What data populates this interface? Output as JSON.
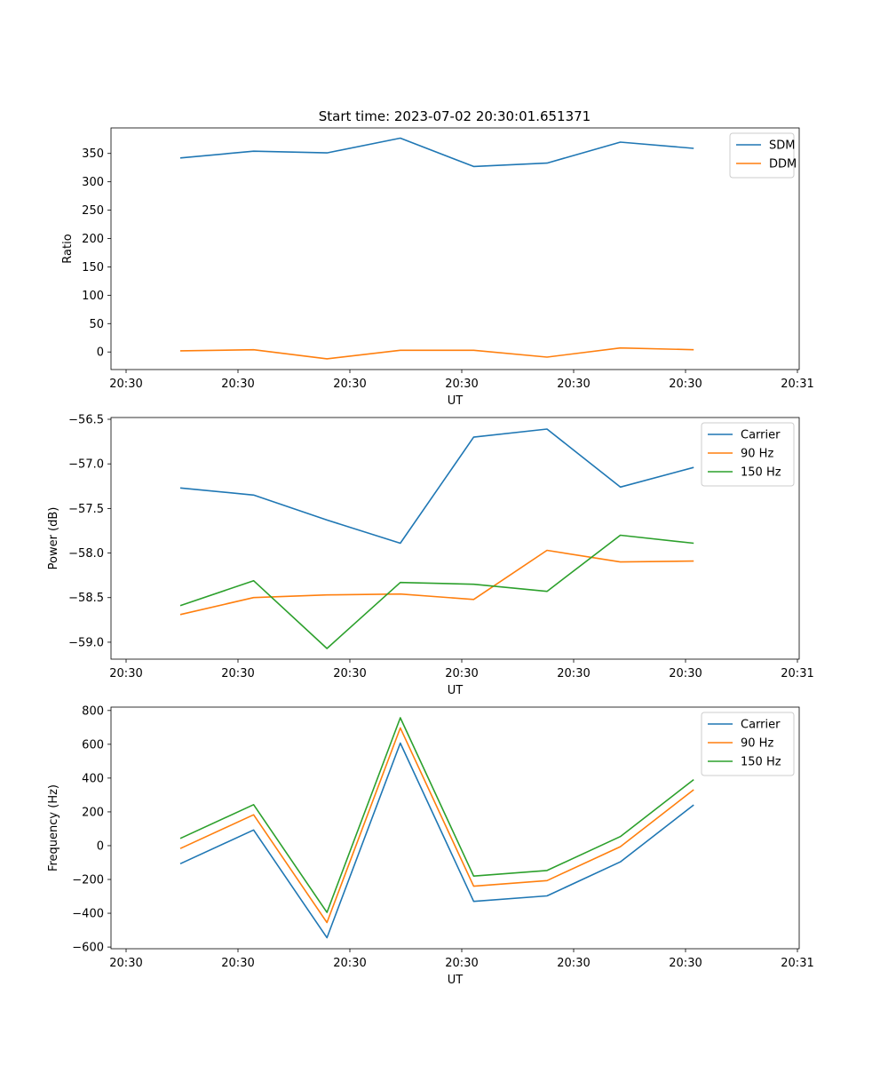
{
  "figure": {
    "title": "Start time: 2023-07-02 20:30:01.651371"
  },
  "chart_data": [
    {
      "type": "line",
      "title": "Start time: 2023-07-02 20:30:01.651371",
      "xlabel": "UT",
      "ylabel": "Ratio",
      "x_tick_labels": [
        "20:30",
        "20:30",
        "20:30",
        "20:30",
        "20:30",
        "20:30",
        "20:31"
      ],
      "yticks": [
        0,
        50,
        100,
        150,
        200,
        250,
        300,
        350
      ],
      "ylim": [
        -31,
        395
      ],
      "legend_position": "top-right",
      "x": [
        1,
        2,
        3,
        4,
        5,
        6,
        7,
        8
      ],
      "series": [
        {
          "name": "SDM",
          "color": "#1f77b4",
          "values": [
            342,
            354,
            351,
            377,
            327,
            333,
            370,
            359
          ]
        },
        {
          "name": "DDM",
          "color": "#ff7f0e",
          "values": [
            2,
            4,
            -12,
            3,
            3,
            -9,
            7,
            4
          ]
        }
      ]
    },
    {
      "type": "line",
      "title": "",
      "xlabel": "UT",
      "ylabel": "Power (dB)",
      "x_tick_labels": [
        "20:30",
        "20:30",
        "20:30",
        "20:30",
        "20:30",
        "20:30",
        "20:31"
      ],
      "yticks": [
        -59.0,
        -58.5,
        -58.0,
        -57.5,
        -57.0,
        -56.5
      ],
      "ytick_labels": [
        "−59.0",
        "−58.5",
        "−58.0",
        "−57.5",
        "−57.0",
        "−56.5"
      ],
      "ylim": [
        -59.19,
        -56.48
      ],
      "legend_position": "top-right",
      "x": [
        1,
        2,
        3,
        4,
        5,
        6,
        7,
        8
      ],
      "series": [
        {
          "name": "Carrier",
          "color": "#1f77b4",
          "values": [
            -57.27,
            -57.35,
            -57.63,
            -57.89,
            -56.7,
            -56.61,
            -57.26,
            -57.04
          ]
        },
        {
          "name": "90 Hz",
          "color": "#ff7f0e",
          "values": [
            -58.69,
            -58.5,
            -58.47,
            -58.46,
            -58.52,
            -57.97,
            -58.1,
            -58.09
          ]
        },
        {
          "name": "150 Hz",
          "color": "#2ca02c",
          "values": [
            -58.59,
            -58.31,
            -59.07,
            -58.33,
            -58.35,
            -58.43,
            -57.8,
            -57.89
          ]
        }
      ]
    },
    {
      "type": "line",
      "title": "",
      "xlabel": "UT",
      "ylabel": "Frequency (Hz)",
      "x_tick_labels": [
        "20:30",
        "20:30",
        "20:30",
        "20:30",
        "20:30",
        "20:30",
        "20:31"
      ],
      "yticks": [
        -600,
        -400,
        -200,
        0,
        200,
        400,
        600,
        800
      ],
      "ytick_labels": [
        "−600",
        "−400",
        "−200",
        "0",
        "200",
        "400",
        "600",
        "800"
      ],
      "ylim": [
        -610,
        820
      ],
      "legend_position": "top-right",
      "x": [
        1,
        2,
        3,
        4,
        5,
        6,
        7,
        8
      ],
      "series": [
        {
          "name": "Carrier",
          "color": "#1f77b4",
          "values": [
            -107,
            93,
            -545,
            607,
            -330,
            -297,
            -96,
            241
          ]
        },
        {
          "name": "90 Hz",
          "color": "#ff7f0e",
          "values": [
            -17,
            183,
            -455,
            697,
            -240,
            -207,
            -6,
            331
          ]
        },
        {
          "name": "150 Hz",
          "color": "#2ca02c",
          "values": [
            43,
            243,
            -395,
            757,
            -180,
            -147,
            54,
            391
          ]
        }
      ]
    }
  ]
}
